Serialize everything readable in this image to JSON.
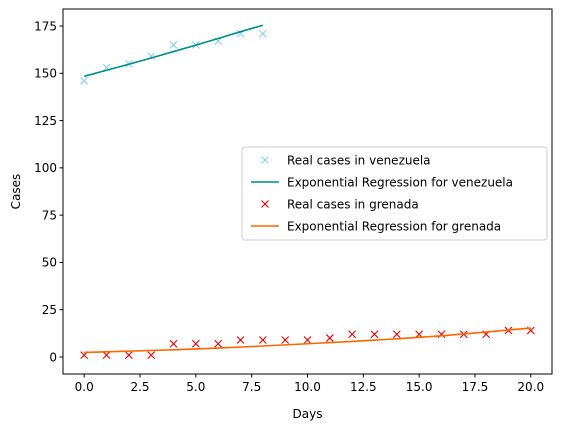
{
  "chart_data": {
    "type": "scatter",
    "title": "",
    "xlabel": "Days",
    "ylabel": "Cases",
    "xlim": [
      -0.95,
      20.95
    ],
    "ylim": [
      -9,
      184
    ],
    "x_ticks": [
      0.0,
      2.5,
      5.0,
      7.5,
      10.0,
      12.5,
      15.0,
      17.5,
      20.0
    ],
    "x_tick_labels": [
      "0.0",
      "2.5",
      "5.0",
      "7.5",
      "10.0",
      "12.5",
      "15.0",
      "17.5",
      "20.0"
    ],
    "y_ticks": [
      0,
      25,
      50,
      75,
      100,
      125,
      150,
      175
    ],
    "y_tick_labels": [
      "0",
      "25",
      "50",
      "75",
      "100",
      "125",
      "150",
      "175"
    ],
    "grid": false,
    "legend_position": "center-right",
    "series": [
      {
        "name": "Real cases in venezuela",
        "kind": "markers",
        "marker": "x",
        "color": "#87ceeb",
        "x": [
          0,
          1,
          2,
          3,
          4,
          5,
          6,
          7,
          8
        ],
        "y": [
          146,
          153,
          155,
          159,
          165,
          165,
          167,
          171,
          171
        ]
      },
      {
        "name": "Exponential Regression for venezuela",
        "kind": "line",
        "color": "#008b8b",
        "x": [
          0,
          1,
          2,
          3,
          4,
          5,
          6,
          7,
          8
        ],
        "y": [
          148.4,
          151.6,
          154.8,
          158.1,
          161.5,
          164.9,
          168.4,
          172.0,
          175.4
        ]
      },
      {
        "name": "Real cases in grenada",
        "kind": "markers",
        "marker": "x",
        "color": "#e00000",
        "x": [
          0,
          1,
          2,
          3,
          4,
          5,
          6,
          7,
          8,
          9,
          10,
          11,
          12,
          13,
          14,
          15,
          16,
          17,
          18,
          19,
          20
        ],
        "y": [
          1,
          1,
          1,
          1,
          7,
          7,
          7,
          9,
          9,
          9,
          9,
          10,
          12,
          12,
          12,
          12,
          12,
          12,
          12,
          14,
          14
        ]
      },
      {
        "name": "Exponential Regression for grenada",
        "kind": "line",
        "color": "#ff6600",
        "x": [
          0,
          2,
          4,
          6,
          8,
          10,
          12,
          14,
          16,
          18,
          20
        ],
        "y": [
          2.4,
          3.1,
          3.8,
          4.7,
          5.8,
          7.0,
          8.2,
          9.6,
          11.2,
          13.2,
          15.3
        ]
      }
    ]
  }
}
